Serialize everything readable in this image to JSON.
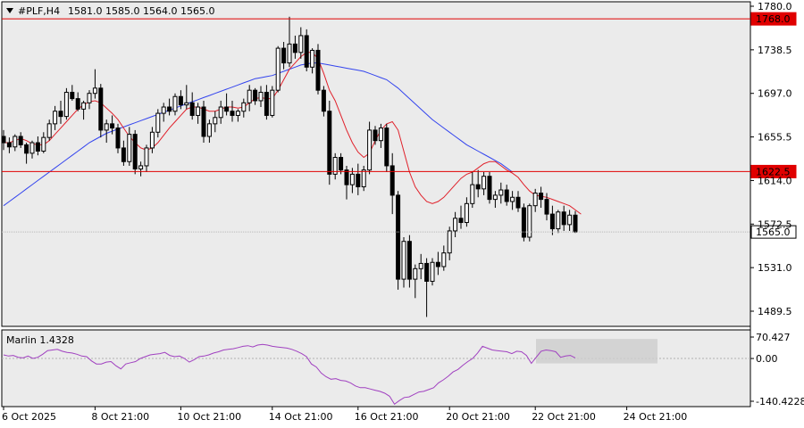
{
  "header": {
    "symbol": "#PLF,H4",
    "ohlc": "1581.0 1585.0 1564.0 1565.0"
  },
  "indicator": {
    "name": "Marlin 1.4328",
    "scale_labels": [
      "70.427",
      "0.00",
      "-140.4228"
    ],
    "scale_values": [
      70.427,
      0.0,
      -140.4228
    ]
  },
  "price_axis": {
    "labels": [
      "1780.0",
      "1738.5",
      "1697.0",
      "1655.5",
      "1614.0",
      "1572.5",
      "1531.0",
      "1489.5"
    ],
    "values": [
      1780.0,
      1738.5,
      1697.0,
      1655.5,
      1614.0,
      1572.5,
      1531.0,
      1489.5
    ]
  },
  "price_tags": [
    {
      "text": "1768.0",
      "value": 1768.0,
      "color": "#e00000"
    },
    {
      "text": "1622.5",
      "value": 1622.5,
      "color": "#e00000"
    },
    {
      "text": "1565.0",
      "value": 1565.0,
      "color": "#000000"
    }
  ],
  "time_axis": {
    "labels": [
      "6 Oct 2025",
      "8 Oct 21:00",
      "10 Oct 21:00",
      "14 Oct 21:00",
      "16 Oct 21:00",
      "20 Oct 21:00",
      "22 Oct 21:00",
      "24 Oct 21:00"
    ],
    "bar_index": [
      0,
      16,
      31,
      47,
      62,
      78,
      93,
      109
    ]
  },
  "colors": {
    "background": "#ffffff",
    "chart_bg": "#ebebeb",
    "grid": "#c8c8c8",
    "bull_body": "#ffffff",
    "bear_body": "#000000",
    "ma_fast": "#e0202a",
    "ma_slow": "#3344ee",
    "oscillator": "#a040c0",
    "hline": "#e00000"
  },
  "chart_data": {
    "type": "candlestick",
    "symbol": "#PLF",
    "timeframe": "H4",
    "ylim": [
      1475,
      1787
    ],
    "candles": [
      [
        1656,
        1662,
        1643,
        1650
      ],
      [
        1650,
        1655,
        1640,
        1646
      ],
      [
        1646,
        1658,
        1642,
        1656
      ],
      [
        1656,
        1660,
        1645,
        1648
      ],
      [
        1648,
        1650,
        1630,
        1640
      ],
      [
        1640,
        1652,
        1635,
        1650
      ],
      [
        1650,
        1656,
        1638,
        1642
      ],
      [
        1642,
        1660,
        1640,
        1655
      ],
      [
        1655,
        1672,
        1652,
        1668
      ],
      [
        1668,
        1685,
        1662,
        1680
      ],
      [
        1680,
        1690,
        1668,
        1675
      ],
      [
        1675,
        1702,
        1672,
        1698
      ],
      [
        1698,
        1705,
        1690,
        1692
      ],
      [
        1692,
        1698,
        1680,
        1682
      ],
      [
        1682,
        1690,
        1672,
        1688
      ],
      [
        1688,
        1700,
        1682,
        1697
      ],
      [
        1697,
        1720,
        1692,
        1702
      ],
      [
        1702,
        1706,
        1655,
        1662
      ],
      [
        1662,
        1672,
        1650,
        1668
      ],
      [
        1668,
        1676,
        1658,
        1664
      ],
      [
        1664,
        1668,
        1640,
        1645
      ],
      [
        1645,
        1652,
        1628,
        1632
      ],
      [
        1632,
        1665,
        1628,
        1658
      ],
      [
        1658,
        1662,
        1620,
        1625
      ],
      [
        1625,
        1632,
        1618,
        1628
      ],
      [
        1628,
        1648,
        1622,
        1645
      ],
      [
        1645,
        1665,
        1640,
        1660
      ],
      [
        1660,
        1682,
        1655,
        1678
      ],
      [
        1678,
        1688,
        1670,
        1684
      ],
      [
        1684,
        1692,
        1676,
        1680
      ],
      [
        1680,
        1697,
        1676,
        1694
      ],
      [
        1694,
        1700,
        1682,
        1686
      ],
      [
        1686,
        1705,
        1682,
        1688
      ],
      [
        1688,
        1698,
        1672,
        1676
      ],
      [
        1676,
        1688,
        1668,
        1684
      ],
      [
        1684,
        1690,
        1650,
        1656
      ],
      [
        1656,
        1672,
        1650,
        1668
      ],
      [
        1668,
        1680,
        1660,
        1674
      ],
      [
        1674,
        1690,
        1668,
        1684
      ],
      [
        1684,
        1697,
        1676,
        1680
      ],
      [
        1680,
        1690,
        1670,
        1676
      ],
      [
        1676,
        1682,
        1670,
        1680
      ],
      [
        1680,
        1692,
        1674,
        1688
      ],
      [
        1688,
        1705,
        1680,
        1700
      ],
      [
        1700,
        1702,
        1686,
        1690
      ],
      [
        1690,
        1704,
        1684,
        1698
      ],
      [
        1698,
        1705,
        1672,
        1676
      ],
      [
        1676,
        1704,
        1674,
        1700
      ],
      [
        1700,
        1742,
        1698,
        1740
      ],
      [
        1740,
        1746,
        1720,
        1726
      ],
      [
        1726,
        1770,
        1722,
        1744
      ],
      [
        1744,
        1752,
        1730,
        1736
      ],
      [
        1736,
        1760,
        1730,
        1752
      ],
      [
        1752,
        1758,
        1718,
        1722
      ],
      [
        1722,
        1740,
        1716,
        1738
      ],
      [
        1738,
        1744,
        1696,
        1700
      ],
      [
        1700,
        1704,
        1675,
        1680
      ],
      [
        1680,
        1690,
        1610,
        1620
      ],
      [
        1620,
        1640,
        1615,
        1636
      ],
      [
        1636,
        1640,
        1620,
        1624
      ],
      [
        1624,
        1628,
        1596,
        1610
      ],
      [
        1610,
        1626,
        1602,
        1620
      ],
      [
        1620,
        1630,
        1600,
        1608
      ],
      [
        1608,
        1628,
        1604,
        1624
      ],
      [
        1624,
        1670,
        1620,
        1662
      ],
      [
        1662,
        1666,
        1648,
        1652
      ],
      [
        1652,
        1668,
        1645,
        1664
      ],
      [
        1664,
        1668,
        1622,
        1628
      ],
      [
        1628,
        1640,
        1582,
        1600
      ],
      [
        1600,
        1604,
        1510,
        1520
      ],
      [
        1520,
        1560,
        1512,
        1556
      ],
      [
        1556,
        1562,
        1512,
        1520
      ],
      [
        1520,
        1534,
        1502,
        1530
      ],
      [
        1530,
        1544,
        1520,
        1535
      ],
      [
        1535,
        1540,
        1484,
        1518
      ],
      [
        1518,
        1540,
        1514,
        1536
      ],
      [
        1536,
        1546,
        1524,
        1532
      ],
      [
        1532,
        1552,
        1528,
        1545
      ],
      [
        1545,
        1570,
        1538,
        1566
      ],
      [
        1566,
        1584,
        1560,
        1578
      ],
      [
        1578,
        1590,
        1568,
        1574
      ],
      [
        1574,
        1598,
        1570,
        1592
      ],
      [
        1592,
        1622,
        1588,
        1610
      ],
      [
        1610,
        1624,
        1598,
        1606
      ],
      [
        1606,
        1622,
        1600,
        1618
      ],
      [
        1618,
        1622,
        1592,
        1596
      ],
      [
        1596,
        1604,
        1588,
        1600
      ],
      [
        1600,
        1612,
        1592,
        1605
      ],
      [
        1605,
        1610,
        1590,
        1594
      ],
      [
        1594,
        1604,
        1586,
        1598
      ],
      [
        1598,
        1604,
        1584,
        1588
      ],
      [
        1588,
        1592,
        1556,
        1560
      ],
      [
        1560,
        1592,
        1556,
        1590
      ],
      [
        1590,
        1606,
        1584,
        1602
      ],
      [
        1602,
        1608,
        1588,
        1596
      ],
      [
        1596,
        1602,
        1576,
        1582
      ],
      [
        1582,
        1590,
        1562,
        1568
      ],
      [
        1568,
        1586,
        1564,
        1584
      ],
      [
        1584,
        1590,
        1566,
        1572
      ],
      [
        1572,
        1586,
        1566,
        1581
      ],
      [
        1581,
        1585,
        1564,
        1565
      ]
    ],
    "ma_fast": [
      1650,
      1650,
      1652,
      1654,
      1652,
      1649,
      1648,
      1648,
      1652,
      1658,
      1664,
      1670,
      1676,
      1682,
      1686,
      1689,
      1690,
      1688,
      1683,
      1678,
      1672,
      1664,
      1656,
      1650,
      1645,
      1643,
      1645,
      1650,
      1657,
      1664,
      1670,
      1676,
      1682,
      1684,
      1684,
      1682,
      1680,
      1680,
      1682,
      1684,
      1684,
      1683,
      1684,
      1688,
      1692,
      1693,
      1692,
      1692,
      1700,
      1710,
      1720,
      1726,
      1732,
      1736,
      1736,
      1730,
      1716,
      1700,
      1690,
      1676,
      1662,
      1650,
      1641,
      1636,
      1640,
      1652,
      1662,
      1668,
      1670,
      1662,
      1642,
      1622,
      1608,
      1600,
      1594,
      1592,
      1594,
      1598,
      1604,
      1610,
      1616,
      1620,
      1622,
      1626,
      1630,
      1632,
      1632,
      1628,
      1624,
      1621,
      1617,
      1610,
      1604,
      1600,
      1599,
      1598,
      1596,
      1594,
      1592,
      1590,
      1586,
      1582
    ],
    "ma_slow": [
      1590,
      1594,
      1598,
      1602,
      1606,
      1610,
      1614,
      1618,
      1622,
      1626,
      1630,
      1634,
      1638,
      1642,
      1646,
      1650,
      1653,
      1656,
      1659,
      1661,
      1663,
      1665,
      1667,
      1669,
      1671,
      1673,
      1675,
      1677,
      1679,
      1681,
      1683,
      1685,
      1687,
      1689,
      1691,
      1693,
      1695,
      1697,
      1699,
      1701,
      1703,
      1705,
      1707,
      1709,
      1711,
      1712,
      1713,
      1714,
      1716,
      1718,
      1720,
      1722,
      1724,
      1725,
      1726,
      1726,
      1725,
      1724,
      1723,
      1722,
      1721,
      1720,
      1719,
      1718,
      1716,
      1714,
      1712,
      1710,
      1706,
      1702,
      1697,
      1692,
      1687,
      1682,
      1677,
      1672,
      1668,
      1664,
      1660,
      1656,
      1652,
      1648,
      1645,
      1642,
      1639,
      1636,
      1633,
      1630,
      1626,
      1622
    ],
    "oscillator": [
      12,
      8,
      10,
      4,
      2,
      8,
      0,
      4,
      14,
      26,
      28,
      30,
      24,
      20,
      18,
      14,
      8,
      6,
      -8,
      -18,
      -18,
      -12,
      -10,
      -24,
      -34,
      -18,
      -14,
      -10,
      0,
      6,
      12,
      14,
      16,
      20,
      10,
      6,
      8,
      0,
      -12,
      -4,
      6,
      8,
      12,
      18,
      22,
      28,
      30,
      32,
      36,
      40,
      42,
      38,
      44,
      46,
      44,
      40,
      38,
      36,
      34,
      30,
      24,
      16,
      6,
      -18,
      -28,
      -48,
      -60,
      -68,
      -66,
      -72,
      -74,
      -80,
      -90,
      -96,
      -96,
      -100,
      -104,
      -108,
      -114,
      -124,
      -150,
      -138,
      -128,
      -126,
      -118,
      -110,
      -108,
      -102,
      -96,
      -80,
      -70,
      -58,
      -44,
      -36,
      -22,
      -10,
      0,
      18,
      40,
      34,
      28,
      26,
      24,
      22,
      16,
      24,
      22,
      10,
      -16,
      4,
      24,
      28,
      26,
      22,
      4,
      8,
      10,
      2
    ]
  }
}
